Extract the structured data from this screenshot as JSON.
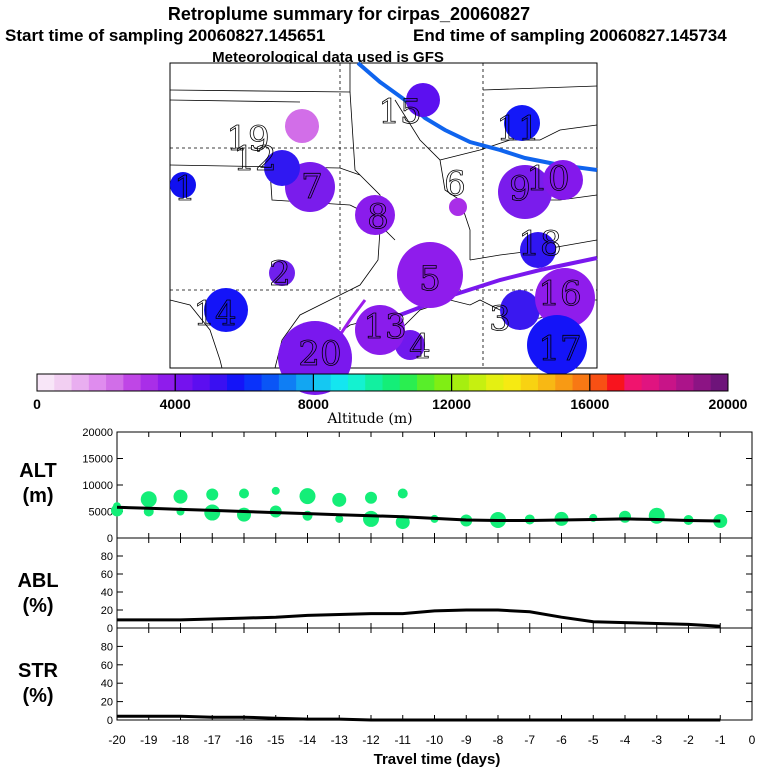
{
  "title": "Retroplume summary for cirpas_20060827",
  "subtitle_start": "Start time of sampling 20060827.145651",
  "subtitle_end": "End time of sampling 20060827.145734",
  "subtitle_met": "Meteorological data used is GFS",
  "colorbar": {
    "label": "Altitude  (m)",
    "ticks": [
      "0",
      "4000",
      "8000",
      "12000",
      "16000",
      "20000"
    ],
    "min": 0,
    "max": 20000,
    "colors": [
      "#f8e6f8",
      "#f2cff2",
      "#e9aef0",
      "#df8cee",
      "#d16ee8",
      "#bf46e6",
      "#a92ee8",
      "#8f1cec",
      "#7512ee",
      "#5c0ef0",
      "#3a10f2",
      "#1414f8",
      "#0a32fa",
      "#0a55f6",
      "#0f7ef4",
      "#12a6f2",
      "#15c8f2",
      "#14e6f0",
      "#14f2d0",
      "#12f0a0",
      "#14ee78",
      "#2aee50",
      "#58ee2a",
      "#80ee14",
      "#a6ee10",
      "#c6f010",
      "#e4f012",
      "#f6ea12",
      "#f8d212",
      "#f8b814",
      "#f89a14",
      "#f87814",
      "#f85014",
      "#f8141e",
      "#f0146e",
      "#e01480",
      "#c81488",
      "#ac148a",
      "#8c1484",
      "#6e147a"
    ]
  },
  "map": {
    "plume_labels": [
      "1",
      "2",
      "3",
      "4",
      "5",
      "6",
      "7",
      "8",
      "9",
      "10",
      "11",
      "12",
      "13",
      "14",
      "15",
      "16",
      "17",
      "18",
      "19",
      "20"
    ],
    "plumes": [
      {
        "label": "1",
        "color": "#1010f0"
      },
      {
        "label": "2",
        "color": "#7020ee"
      },
      {
        "label": "3",
        "color": "#3a18f0"
      },
      {
        "label": "4",
        "color": "#7018ee"
      },
      {
        "label": "5",
        "color": "#8f1cec"
      },
      {
        "label": "6",
        "color": "#3016f2"
      },
      {
        "label": "7",
        "color": "#7a1cec"
      },
      {
        "label": "8",
        "color": "#8a1cec"
      },
      {
        "label": "9",
        "color": "#7a1cec"
      },
      {
        "label": "10",
        "color": "#8418ec"
      },
      {
        "label": "11",
        "color": "#1418f8"
      },
      {
        "label": "12",
        "color": "#3018f2"
      },
      {
        "label": "13",
        "color": "#8a1cec"
      },
      {
        "label": "14",
        "color": "#1414f8"
      },
      {
        "label": "15",
        "color": "#5c10f0"
      },
      {
        "label": "16",
        "color": "#8f1cec"
      },
      {
        "label": "17",
        "color": "#1414f8"
      },
      {
        "label": "18",
        "color": "#a92ee8"
      },
      {
        "label": "19",
        "color": "#d26ee8"
      },
      {
        "label": "20",
        "color": "#7a18ee"
      }
    ]
  },
  "chart_data": [
    {
      "type": "scatter",
      "panel": "ALT",
      "ylabel_line1": "ALT",
      "ylabel_line2": "(m)",
      "ylim": [
        0,
        20000
      ],
      "yticks": [
        "0",
        "5000",
        "10000",
        "15000",
        "20000"
      ],
      "xlim": [
        -20,
        0
      ],
      "mean_line": {
        "x": [
          -20,
          -19,
          -18,
          -17,
          -16,
          -15,
          -14,
          -13,
          -12,
          -11,
          -10,
          -9,
          -8,
          -7,
          -6,
          -5,
          -4,
          -3,
          -2,
          -1
        ],
        "y": [
          5800,
          5600,
          5400,
          5200,
          5000,
          4800,
          4600,
          4400,
          4200,
          4000,
          3700,
          3400,
          3300,
          3300,
          3400,
          3500,
          3600,
          3500,
          3300,
          3200
        ]
      },
      "scatter_color": "#14ee78",
      "points": [
        {
          "x": -20,
          "y": 6000
        },
        {
          "x": -20,
          "y": 5200
        },
        {
          "x": -19,
          "y": 7300
        },
        {
          "x": -19,
          "y": 5000
        },
        {
          "x": -18,
          "y": 7800
        },
        {
          "x": -18,
          "y": 5000
        },
        {
          "x": -17,
          "y": 8200
        },
        {
          "x": -17,
          "y": 4800
        },
        {
          "x": -16,
          "y": 8400
        },
        {
          "x": -16,
          "y": 4400
        },
        {
          "x": -15,
          "y": 8900
        },
        {
          "x": -15,
          "y": 5000
        },
        {
          "x": -14,
          "y": 7900
        },
        {
          "x": -14,
          "y": 4200
        },
        {
          "x": -13,
          "y": 7200
        },
        {
          "x": -13,
          "y": 3600
        },
        {
          "x": -12,
          "y": 7600
        },
        {
          "x": -12,
          "y": 3600
        },
        {
          "x": -11,
          "y": 8400
        },
        {
          "x": -11,
          "y": 3000
        },
        {
          "x": -10,
          "y": 3600
        },
        {
          "x": -9,
          "y": 3300
        },
        {
          "x": -8,
          "y": 3400
        },
        {
          "x": -7,
          "y": 3500
        },
        {
          "x": -6,
          "y": 3600
        },
        {
          "x": -5,
          "y": 3800
        },
        {
          "x": -4,
          "y": 4000
        },
        {
          "x": -3,
          "y": 4200
        },
        {
          "x": -2,
          "y": 3400
        },
        {
          "x": -1,
          "y": 3200
        }
      ]
    },
    {
      "type": "line",
      "panel": "ABL",
      "ylabel_line1": "ABL",
      "ylabel_line2": "(%)",
      "ylim": [
        0,
        100
      ],
      "yticks": [
        "0",
        "20",
        "40",
        "60",
        "80"
      ],
      "xlim": [
        -20,
        0
      ],
      "x": [
        -20,
        -19,
        -18,
        -17,
        -16,
        -15,
        -14,
        -13,
        -12,
        -11,
        -10,
        -9,
        -8,
        -7,
        -6,
        -5,
        -4,
        -3,
        -2,
        -1
      ],
      "y": [
        9,
        9,
        9,
        10,
        11,
        12,
        14,
        15,
        16,
        16,
        19,
        20,
        20,
        18,
        12,
        7,
        6,
        5,
        4,
        2
      ]
    },
    {
      "type": "line",
      "panel": "STR",
      "ylabel_line1": "STR",
      "ylabel_line2": "(%)",
      "ylim": [
        0,
        100
      ],
      "yticks": [
        "0",
        "20",
        "40",
        "60",
        "80"
      ],
      "xlim": [
        -20,
        0
      ],
      "x": [
        -20,
        -19,
        -18,
        -17,
        -16,
        -15,
        -14,
        -13,
        -12,
        -11,
        -10,
        -9,
        -8,
        -7,
        -6,
        -5,
        -4,
        -3,
        -2,
        -1
      ],
      "y": [
        4,
        4,
        4,
        3,
        3,
        2,
        1,
        1,
        0,
        0,
        0,
        0,
        0,
        0,
        0,
        0,
        0,
        0,
        0,
        0
      ]
    }
  ],
  "xaxis": {
    "ticks": [
      "-20",
      "-19",
      "-18",
      "-17",
      "-16",
      "-15",
      "-14",
      "-13",
      "-12",
      "-11",
      "-10",
      "-9",
      "-8",
      "-7",
      "-6",
      "-5",
      "-4",
      "-3",
      "-2",
      "-1",
      "0"
    ],
    "label": "Travel time (days)"
  }
}
